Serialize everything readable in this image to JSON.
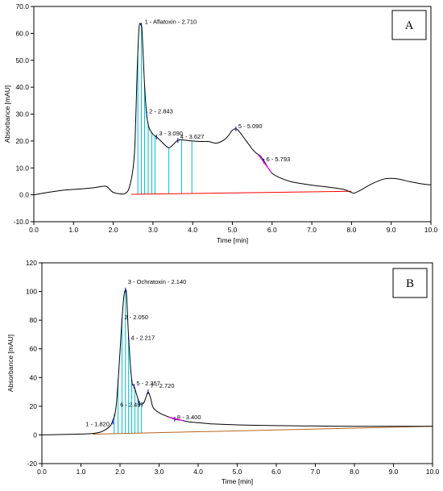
{
  "chart_data": [
    {
      "type": "line",
      "panel_label": "A",
      "xlabel": "Time [min]",
      "ylabel": "Absorbance [mAU]",
      "xlim": [
        0,
        10
      ],
      "ylim": [
        -10,
        70
      ],
      "xticks": [
        0,
        1,
        2,
        3,
        4,
        5,
        6,
        7,
        8,
        9,
        10
      ],
      "yticks": [
        -10,
        0,
        10,
        20,
        30,
        40,
        50,
        60,
        70
      ],
      "xtick_labels": [
        "0.0",
        "1.0",
        "2.0",
        "3.0",
        "4.0",
        "5.0",
        "6.0",
        "7.0",
        "8.0",
        "9.0",
        "10.0"
      ],
      "ytick_labels": [
        "-10.0",
        "0.0",
        "10.0",
        "20.0",
        "30.0",
        "40.0",
        "50.0",
        "60.0",
        "70.0"
      ],
      "grid": false,
      "trace_color": "#000000",
      "baseline_color": "#ff0000",
      "fill_line_color": "#00bcd4",
      "integration_color": "#ff00ff",
      "tick_marker_color": "#0000cc",
      "baseline": [
        [
          2.45,
          0.2
        ],
        [
          8.0,
          1.3
        ]
      ],
      "fill_lines": [
        2.62,
        2.71,
        2.79,
        2.88,
        2.97,
        3.05,
        3.4,
        3.72,
        3.98
      ],
      "x": [
        0.0,
        0.4,
        0.8,
        1.2,
        1.5,
        1.8,
        1.9,
        2.0,
        2.2,
        2.3,
        2.4,
        2.5,
        2.55,
        2.6,
        2.65,
        2.7,
        2.73,
        2.78,
        2.84,
        2.9,
        3.0,
        3.09,
        3.2,
        3.3,
        3.4,
        3.5,
        3.6,
        3.7,
        3.8,
        4.0,
        4.2,
        4.4,
        4.6,
        4.8,
        4.9,
        5.0,
        5.1,
        5.2,
        5.3,
        5.4,
        5.5,
        5.6,
        5.7,
        5.8,
        5.9,
        6.0,
        6.2,
        6.5,
        7.0,
        7.5,
        7.8,
        7.95,
        8.05,
        8.2,
        8.5,
        8.8,
        9.0,
        9.2,
        9.5,
        9.8,
        10.0
      ],
      "y": [
        0.0,
        1.0,
        1.8,
        2.2,
        2.6,
        3.2,
        2.2,
        0.9,
        0.3,
        0.5,
        2.5,
        10.0,
        20.0,
        45.0,
        62.0,
        63.0,
        60.0,
        43.0,
        30.0,
        25.0,
        22.5,
        21.5,
        20.0,
        18.5,
        17.5,
        18.5,
        20.0,
        20.5,
        20.3,
        20.0,
        19.8,
        19.8,
        19.2,
        20.5,
        22.0,
        24.0,
        24.5,
        23.0,
        21.0,
        19.0,
        17.0,
        15.5,
        14.5,
        12.5,
        10.0,
        8.0,
        6.3,
        4.8,
        3.6,
        2.7,
        2.0,
        1.2,
        0.6,
        1.5,
        4.0,
        5.8,
        6.1,
        5.8,
        4.8,
        4.0,
        3.7
      ],
      "peaks": [
        {
          "label": "1 - Aflatoxin - 2.710",
          "x": 2.71,
          "y": 63.0
        },
        {
          "label": "2 - 2.843",
          "x": 2.843,
          "y": 30.0
        },
        {
          "label": "3 - 3.090",
          "x": 3.09,
          "y": 21.5
        },
        {
          "label": "4 - 3.627",
          "x": 3.627,
          "y": 20.2
        },
        {
          "label": "5 - 5.090",
          "x": 5.09,
          "y": 24.5
        },
        {
          "label": "6 - 5.793",
          "x": 5.793,
          "y": 12.5
        }
      ]
    },
    {
      "type": "line",
      "panel_label": "B",
      "xlabel": "Time [min]",
      "ylabel": "Absorbance [mAU]",
      "xlim": [
        0,
        10
      ],
      "ylim": [
        -20,
        120
      ],
      "xticks": [
        0,
        1,
        2,
        3,
        4,
        5,
        6,
        7,
        8,
        9,
        10
      ],
      "yticks": [
        -20,
        0,
        20,
        40,
        60,
        80,
        100,
        120
      ],
      "xtick_labels": [
        "0.0",
        "1.0",
        "2.0",
        "3.0",
        "4.0",
        "5.0",
        "6.0",
        "7.0",
        "8.0",
        "9.0",
        "10.0"
      ],
      "ytick_labels": [
        "-20",
        "0",
        "20",
        "40",
        "60",
        "80",
        "100",
        "120"
      ],
      "grid": false,
      "trace_color": "#000000",
      "baseline_color": "#b5651d",
      "fill_line_color": "#00bcd4",
      "integration_color": "#ff00ff",
      "tick_marker_color": "#0000cc",
      "baseline": [
        [
          1.3,
          0.5
        ],
        [
          10.0,
          6.0
        ]
      ],
      "fill_lines": [
        1.85,
        1.95,
        2.05,
        2.14,
        2.22,
        2.3,
        2.38,
        2.46,
        2.55
      ],
      "x": [
        0.0,
        0.5,
        1.0,
        1.3,
        1.5,
        1.7,
        1.8,
        1.9,
        2.0,
        2.05,
        2.1,
        2.14,
        2.17,
        2.22,
        2.3,
        2.36,
        2.45,
        2.5,
        2.6,
        2.66,
        2.72,
        2.78,
        2.85,
        3.0,
        3.2,
        3.4,
        3.6,
        3.8,
        4.0,
        4.3,
        4.6,
        5.0,
        5.5,
        6.0,
        7.0,
        8.0,
        9.0,
        10.0
      ],
      "y": [
        0.0,
        0.3,
        0.6,
        1.0,
        2.0,
        5.0,
        9.0,
        20.0,
        58.0,
        80.0,
        97.0,
        101.0,
        97.0,
        68.0,
        38.0,
        34.0,
        26.0,
        22.0,
        22.0,
        26.0,
        30.0,
        26.0,
        19.0,
        15.5,
        13.0,
        11.0,
        10.0,
        9.0,
        8.5,
        7.8,
        7.4,
        7.0,
        6.7,
        6.5,
        6.2,
        6.0,
        6.0,
        6.0
      ],
      "peaks": [
        {
          "label": "1 - 1.820",
          "x": 1.82,
          "y": 9.0
        },
        {
          "label": "2 - 2.050",
          "x": 2.05,
          "y": 80.0
        },
        {
          "label": "3 - Ochratoxin - 2.140",
          "x": 2.14,
          "y": 101.0
        },
        {
          "label": "4 - 2.217",
          "x": 2.217,
          "y": 68.0
        },
        {
          "label": "5 - 2.357",
          "x": 2.357,
          "y": 34.0
        },
        {
          "label": "6 - 2.497",
          "x": 2.497,
          "y": 22.0
        },
        {
          "label": "7 - 2.720",
          "x": 2.72,
          "y": 30.0
        },
        {
          "label": "8 - 3.400",
          "x": 3.4,
          "y": 11.0
        }
      ]
    }
  ]
}
